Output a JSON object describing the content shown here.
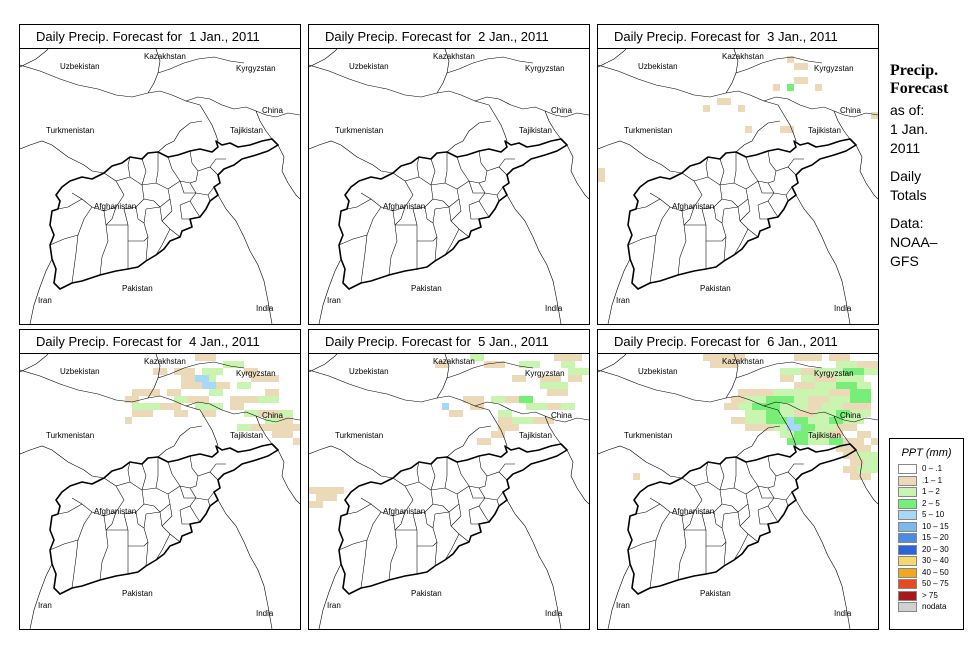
{
  "panels": [
    {
      "title": "Daily Precip. Forecast for  1 Jan., 2011",
      "day": 1
    },
    {
      "title": "Daily Precip. Forecast for  2 Jan., 2011",
      "day": 2
    },
    {
      "title": "Daily Precip. Forecast for  3 Jan., 2011",
      "day": 3
    },
    {
      "title": "Daily Precip. Forecast for  4 Jan., 2011",
      "day": 4
    },
    {
      "title": "Daily Precip. Forecast for  5 Jan., 2011",
      "day": 5
    },
    {
      "title": "Daily Precip. Forecast for  6 Jan., 2011",
      "day": 6
    }
  ],
  "countries": {
    "kazakhstan": "Kazakhstan",
    "uzbekistan": "Uzbekistan",
    "kyrgyzstan": "Kyrgyzstan",
    "china": "China",
    "turkmenistan": "Turkmenistan",
    "tajikistan": "Tajikistan",
    "afghanistan": "Afghanistan",
    "iran": "Iran",
    "pakistan": "Pakistan",
    "india": "India"
  },
  "sidebar": {
    "title_line1": "Precip.",
    "title_line2": "Forecast",
    "asof_line1": "as of:",
    "asof_line2": "1 Jan.",
    "asof_line3": "2011",
    "totals_line1": "Daily",
    "totals_line2": "Totals",
    "data_line1": "Data:",
    "data_line2": "NOAA–",
    "data_line3": "GFS"
  },
  "legend": {
    "title": "PPT (mm)",
    "items": [
      {
        "label": "0 – .1",
        "color": "#ffffff"
      },
      {
        "label": ".1 – 1",
        "color": "#ecd9b8"
      },
      {
        "label": "1 – 2",
        "color": "#c9f5b0"
      },
      {
        "label": "2 – 5",
        "color": "#77ee77"
      },
      {
        "label": "5 – 10",
        "color": "#a8d8f8"
      },
      {
        "label": "10 – 15",
        "color": "#7ab8ee"
      },
      {
        "label": "15 – 20",
        "color": "#4c8ce0"
      },
      {
        "label": "20 – 30",
        "color": "#2a64d8"
      },
      {
        "label": "30 – 40",
        "color": "#f5d870"
      },
      {
        "label": "40 – 50",
        "color": "#f2a81e"
      },
      {
        "label": "50 – 75",
        "color": "#e84a1e"
      },
      {
        "label": "> 75",
        "color": "#a81818"
      },
      {
        "label": "nodata",
        "color": "#d0d0d0"
      }
    ]
  }
}
